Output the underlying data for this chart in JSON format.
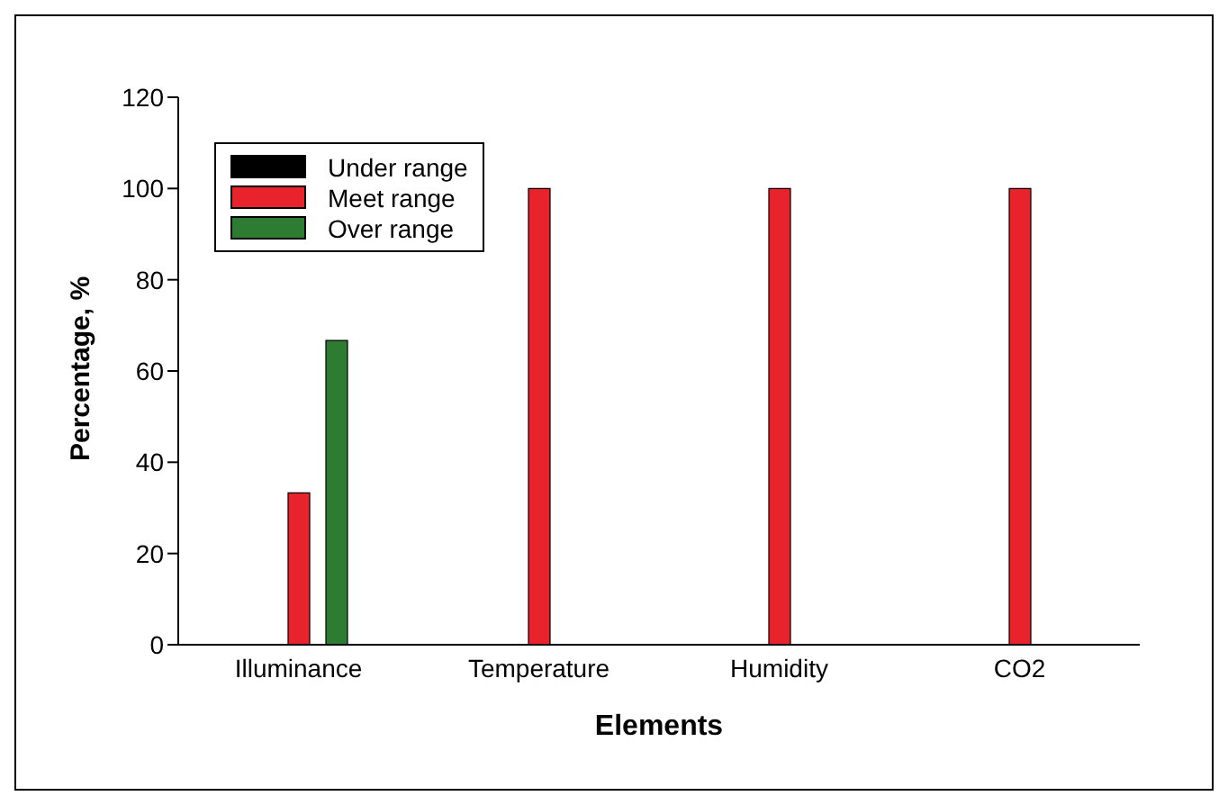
{
  "chart_data": {
    "type": "bar",
    "xlabel": "Elements",
    "ylabel": "Percentage, %",
    "categories": [
      "Illuminance",
      "Temperature",
      "Humidity",
      "CO2"
    ],
    "series": [
      {
        "name": "Under range",
        "color": "#000000",
        "values": [
          0,
          0,
          0,
          0
        ]
      },
      {
        "name": "Meet range",
        "color": "#e8232b",
        "values": [
          33.3,
          100,
          100,
          100
        ]
      },
      {
        "name": "Over range",
        "color": "#2e7b32",
        "values": [
          66.7,
          0,
          0,
          0
        ]
      }
    ],
    "ylim": [
      0,
      120
    ],
    "yticks": [
      0,
      20,
      40,
      60,
      80,
      100,
      120
    ],
    "grid": false,
    "legend": "top left"
  }
}
